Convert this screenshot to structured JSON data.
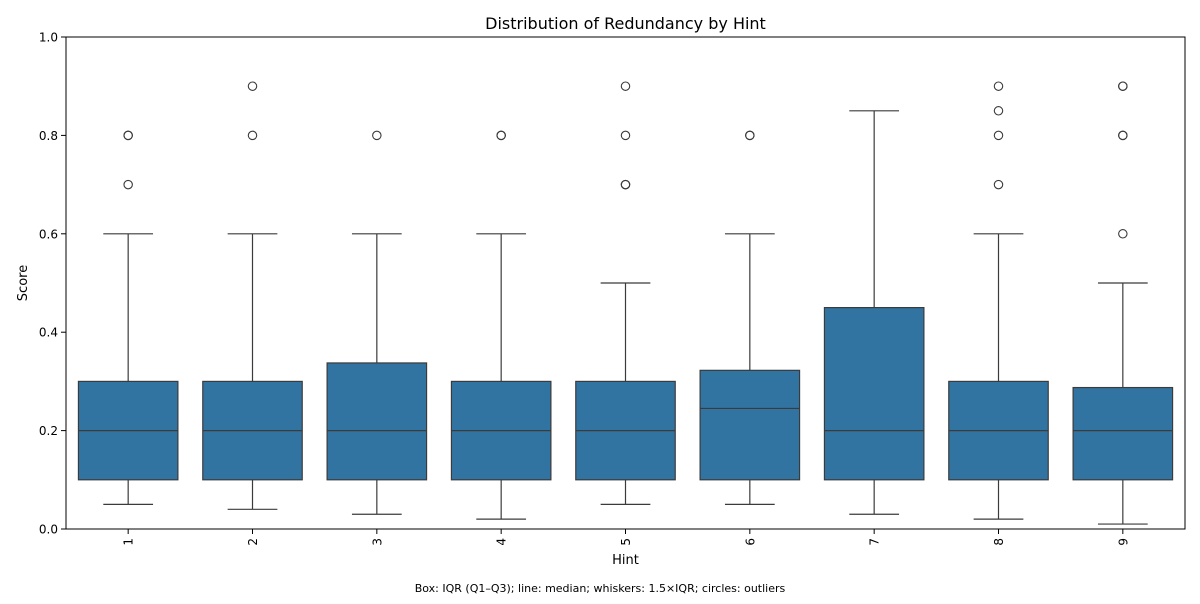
{
  "chart_data": {
    "type": "box",
    "title": "Distribution of Redundancy by Hint",
    "xlabel": "Hint",
    "ylabel": "Score",
    "ylim": [
      0,
      1.0
    ],
    "yticks": [
      "0.0",
      "0.2",
      "0.4",
      "0.6",
      "0.8",
      "1.0"
    ],
    "categories": [
      "1",
      "2",
      "3",
      "4",
      "5",
      "6",
      "7",
      "8",
      "9"
    ],
    "boxes": [
      {
        "q1": 0.1,
        "median": 0.2,
        "q3": 0.3,
        "whisker_low": 0.05,
        "whisker_high": 0.6,
        "outliers": [
          0.7,
          0.8,
          0.8
        ]
      },
      {
        "q1": 0.1,
        "median": 0.2,
        "q3": 0.3,
        "whisker_low": 0.04,
        "whisker_high": 0.6,
        "outliers": [
          0.8,
          0.9
        ]
      },
      {
        "q1": 0.1,
        "median": 0.2,
        "q3": 0.3375,
        "whisker_low": 0.03,
        "whisker_high": 0.6,
        "outliers": [
          0.8
        ]
      },
      {
        "q1": 0.1,
        "median": 0.2,
        "q3": 0.3,
        "whisker_low": 0.02,
        "whisker_high": 0.6,
        "outliers": [
          0.8,
          0.8
        ]
      },
      {
        "q1": 0.1,
        "median": 0.2,
        "q3": 0.3,
        "whisker_low": 0.05,
        "whisker_high": 0.5,
        "outliers": [
          0.7,
          0.7,
          0.8,
          0.9
        ]
      },
      {
        "q1": 0.1,
        "median": 0.245,
        "q3": 0.3225,
        "whisker_low": 0.05,
        "whisker_high": 0.6,
        "outliers": [
          0.8,
          0.8
        ]
      },
      {
        "q1": 0.1,
        "median": 0.2,
        "q3": 0.45,
        "whisker_low": 0.03,
        "whisker_high": 0.85,
        "outliers": []
      },
      {
        "q1": 0.1,
        "median": 0.2,
        "q3": 0.3,
        "whisker_low": 0.02,
        "whisker_high": 0.6,
        "outliers": [
          0.7,
          0.8,
          0.85,
          0.9
        ]
      },
      {
        "q1": 0.1,
        "median": 0.2,
        "q3": 0.2875,
        "whisker_low": 0.01,
        "whisker_high": 0.5,
        "outliers": [
          0.6,
          0.8,
          0.8,
          0.9,
          0.9
        ]
      }
    ],
    "box_color": "#3274a1",
    "line_color": "#3b3b3b",
    "grid": false,
    "legend": "none",
    "footnote": "Box: IQR (Q1–Q3); line: median; whiskers: 1.5×IQR; circles: outliers"
  }
}
